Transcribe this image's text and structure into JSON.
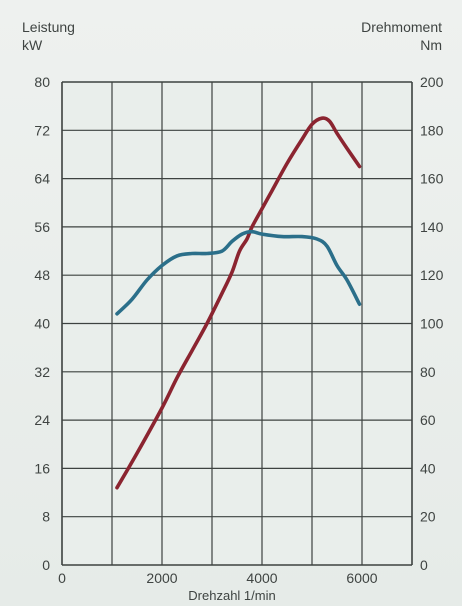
{
  "chart_data": {
    "type": "line",
    "title": "",
    "left_axis": {
      "label": "Leistung",
      "unit": "kW",
      "ylim": [
        0,
        80
      ],
      "ticks": [
        0,
        8,
        16,
        24,
        32,
        40,
        48,
        56,
        64,
        72,
        80
      ]
    },
    "right_axis": {
      "label": "Drehmoment",
      "unit": "Nm",
      "ylim": [
        0,
        200
      ],
      "ticks": [
        0,
        20,
        40,
        60,
        80,
        100,
        120,
        140,
        160,
        180,
        200
      ]
    },
    "x_axis": {
      "label": "Drehzahl 1/min",
      "xlim": [
        0,
        7000
      ],
      "ticks": [
        0,
        2000,
        4000,
        6000
      ],
      "grid_step": 1000
    },
    "grid": true,
    "series": [
      {
        "axis": "left",
        "color": "#8b2430",
        "x": [
          1100,
          1500,
          2000,
          2300,
          2600,
          2900,
          3200,
          3400,
          3550,
          3700,
          3800,
          4000,
          4200,
          4500,
          4800,
          5000,
          5200,
          5350,
          5500,
          5700,
          5950
        ],
        "y": [
          12.8,
          18.5,
          26,
          31,
          35.5,
          40,
          45,
          48.5,
          52,
          54,
          56,
          59,
          62,
          66.5,
          70.5,
          73,
          74,
          73.5,
          71.5,
          69,
          66
        ]
      },
      {
        "axis": "right",
        "color": "#2b6f8a",
        "x": [
          1100,
          1400,
          1700,
          2000,
          2300,
          2600,
          2900,
          3200,
          3400,
          3600,
          3800,
          4000,
          4400,
          4800,
          5100,
          5300,
          5500,
          5700,
          5950
        ],
        "y": [
          104,
          110,
          118,
          124,
          128,
          129,
          129,
          130,
          134,
          137,
          138,
          137,
          136,
          136,
          135,
          132,
          124,
          118,
          108
        ]
      }
    ]
  }
}
